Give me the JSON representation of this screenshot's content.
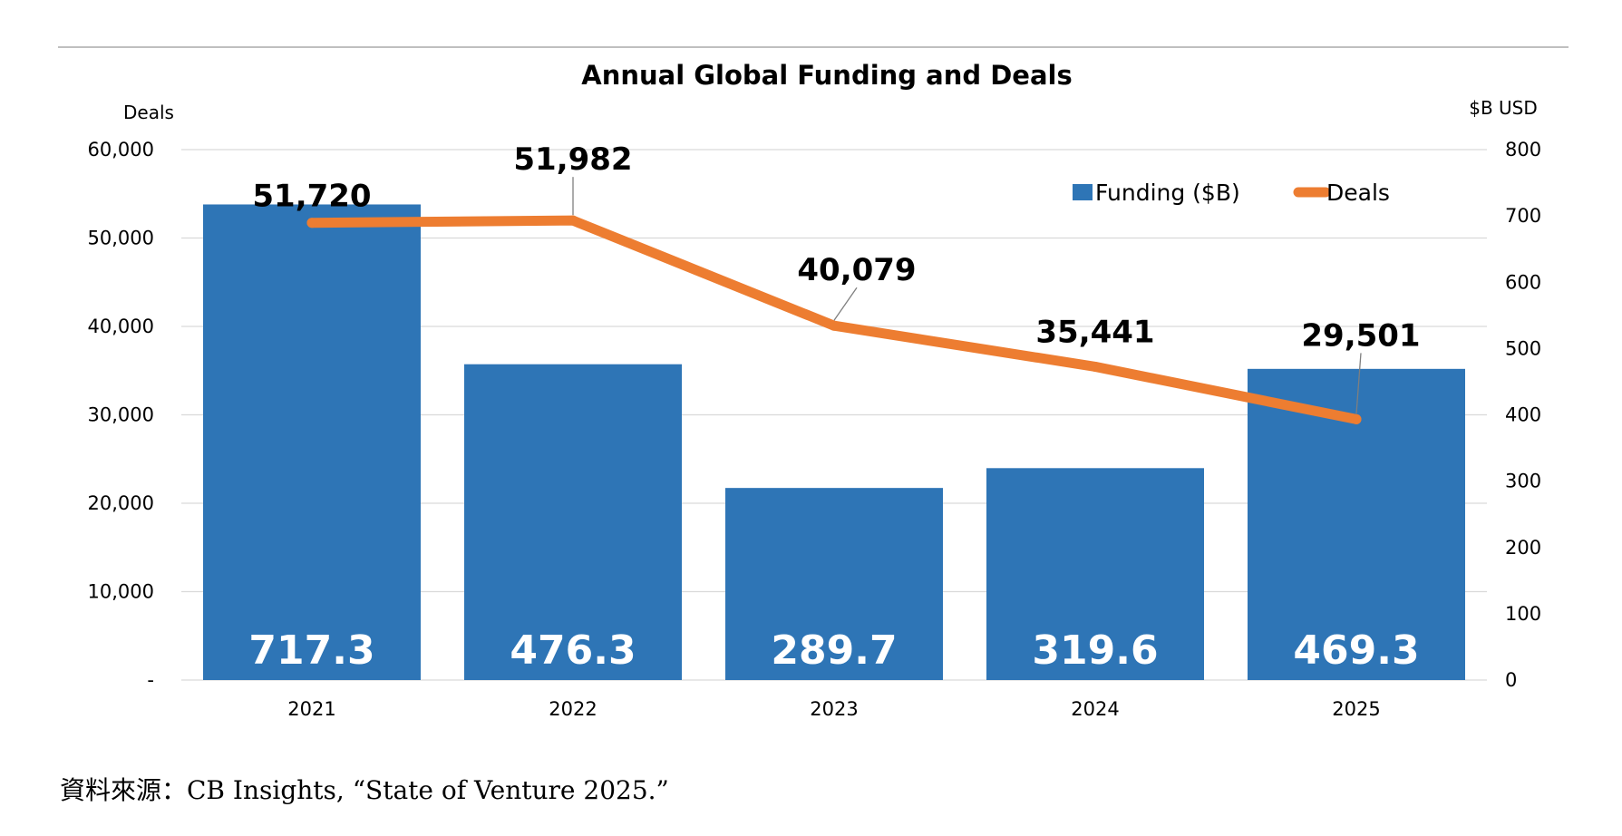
{
  "source_note": "資料來源：CB Insights, “State of Venture 2025.”",
  "colors": {
    "bar": "#2E75B6",
    "line": "#ED7D31",
    "grid": "#D9D9D9",
    "top_rule": "#BFBFBF",
    "leader": "#7F7F7F"
  },
  "chart_data": {
    "type": "bar",
    "title": "Annual Global Funding and Deals",
    "categories": [
      "2021",
      "2022",
      "2023",
      "2024",
      "2025"
    ],
    "series": [
      {
        "name": "Funding ($B)",
        "type": "bar",
        "axis": "right",
        "values": [
          717.3,
          476.3,
          289.7,
          319.6,
          469.3
        ],
        "labels": [
          "717.3",
          "476.3",
          "289.7",
          "319.6",
          "469.3"
        ]
      },
      {
        "name": "Deals",
        "type": "line",
        "axis": "left",
        "values": [
          51720,
          51982,
          40079,
          35441,
          29501
        ],
        "labels": [
          "51,720",
          "51,982",
          "40,079",
          "35,441",
          "29,501"
        ]
      }
    ],
    "left_axis": {
      "title": "Deals",
      "ylim": [
        0,
        60000
      ],
      "ticks": [
        "-",
        "10,000",
        "20,000",
        "30,000",
        "40,000",
        "50,000",
        "60,000"
      ]
    },
    "right_axis": {
      "title": "$B USD",
      "ylim": [
        0,
        800
      ],
      "ticks": [
        "0",
        "100",
        "200",
        "300",
        "400",
        "500",
        "600",
        "700",
        "800"
      ]
    },
    "grid": true,
    "legend": "top-right"
  }
}
